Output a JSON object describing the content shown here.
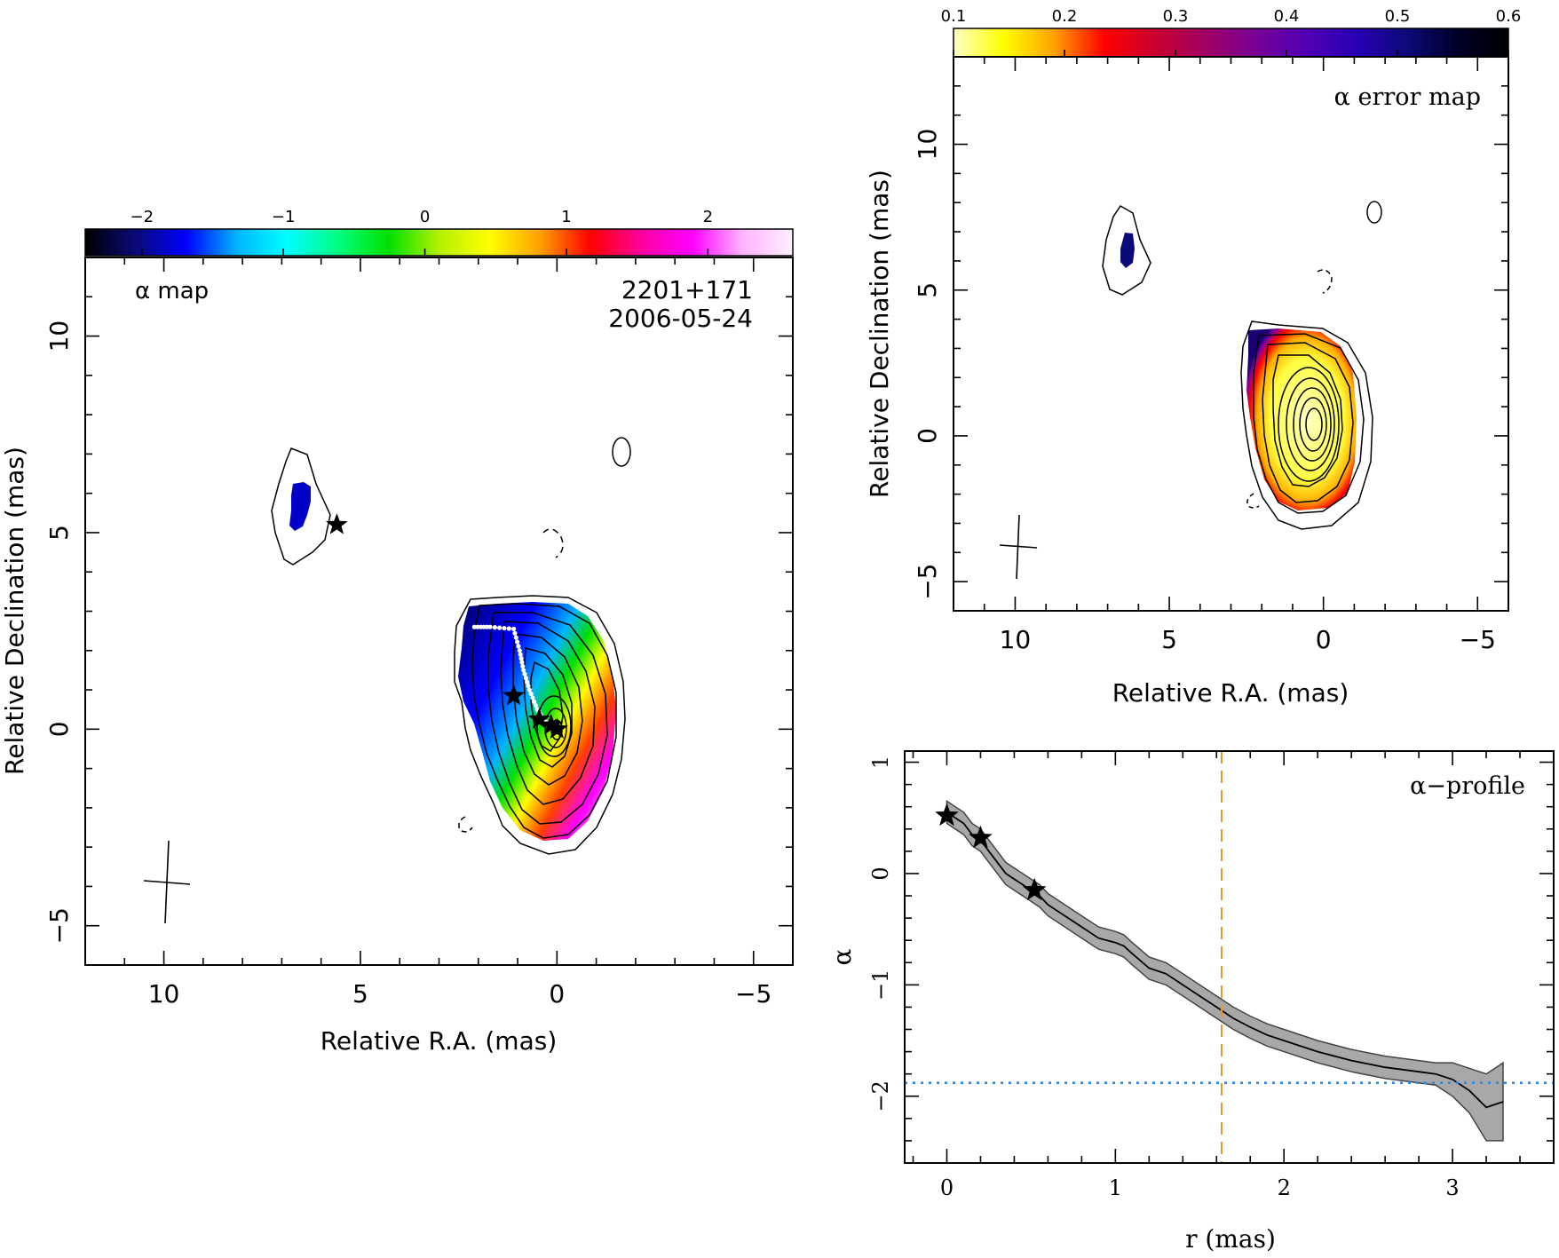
{
  "chart_data": [
    {
      "type": "heatmap",
      "title": "α map",
      "annotation": [
        "2201+171",
        "2006-05-24"
      ],
      "xlabel": "Relative R.A. (mas)",
      "ylabel": "Relative Declination (mas)",
      "xlim": [
        12,
        -6
      ],
      "ylim": [
        -6,
        12
      ],
      "x_ticks": [
        10,
        5,
        0,
        -5
      ],
      "y_ticks": [
        -5,
        0,
        5,
        10
      ],
      "colorbar": {
        "range": [
          -2.4,
          2.6
        ],
        "ticks": [
          -2,
          -1,
          0,
          1,
          2
        ],
        "tick_labels": [
          "−2",
          "−1",
          "0",
          "1",
          "2"
        ],
        "colors": [
          "#000000",
          "#0a0a78",
          "#0000ff",
          "#00b4ff",
          "#00ffff",
          "#00ff80",
          "#00e000",
          "#b4f000",
          "#ffff00",
          "#ffa000",
          "#ff0000",
          "#ff00a0",
          "#ff00ff",
          "#ffb4ff",
          "#fff0ff"
        ]
      },
      "stars": [
        [
          5.6,
          5.2
        ],
        [
          1.1,
          0.85
        ],
        [
          0.45,
          0.25
        ],
        [
          0.15,
          0.1
        ],
        [
          0.0,
          0.0
        ]
      ],
      "ridge_line": [
        [
          2.1,
          2.6
        ],
        [
          1.7,
          2.6
        ],
        [
          1.1,
          2.55
        ],
        [
          0.95,
          2.0
        ],
        [
          0.85,
          1.5
        ],
        [
          0.7,
          1.0
        ],
        [
          0.5,
          0.5
        ],
        [
          0.3,
          0.2
        ],
        [
          0.0,
          0.0
        ]
      ]
    },
    {
      "type": "heatmap",
      "title": "α error map",
      "xlabel": "Relative R.A. (mas)",
      "ylabel": "Relative Declination (mas)",
      "xlim": [
        12,
        -6
      ],
      "ylim": [
        -6,
        13
      ],
      "x_ticks": [
        10,
        5,
        0,
        -5
      ],
      "y_ticks": [
        -5,
        0,
        5,
        10
      ],
      "colorbar": {
        "range": [
          0.1,
          0.6
        ],
        "ticks": [
          0.1,
          0.2,
          0.3,
          0.4,
          0.5,
          0.6
        ],
        "tick_labels": [
          "0.1",
          "0.2",
          "0.3",
          "0.4",
          "0.5",
          "0.6"
        ],
        "colors": [
          "#ffffc8",
          "#ffff00",
          "#ffa000",
          "#ff0000",
          "#c80030",
          "#a00064",
          "#780096",
          "#5000b4",
          "#2800b4",
          "#0a0a78",
          "#000028",
          "#000000"
        ]
      }
    },
    {
      "type": "line",
      "title": "α−profile",
      "xlabel": "r (mas)",
      "ylabel": "α",
      "xlim": [
        -0.25,
        3.6
      ],
      "ylim": [
        -2.6,
        1.1
      ],
      "x_ticks": [
        0,
        1,
        2,
        3
      ],
      "y_ticks": [
        -2,
        -1,
        0,
        1
      ],
      "y_tick_labels": [
        "−2",
        "−1",
        "0",
        "1"
      ],
      "series": [
        {
          "x": [
            0.0,
            0.1,
            0.15,
            0.2,
            0.3,
            0.35,
            0.4,
            0.5,
            0.55,
            0.6,
            0.7,
            0.8,
            0.9,
            1.0,
            1.05,
            1.1,
            1.2,
            1.3,
            1.4,
            1.5,
            1.6,
            1.7,
            1.8,
            1.9,
            2.0,
            2.2,
            2.4,
            2.6,
            2.8,
            2.9,
            3.0,
            3.1,
            3.2,
            3.3
          ],
          "y": [
            0.55,
            0.45,
            0.35,
            0.3,
            0.1,
            0.0,
            -0.05,
            -0.15,
            -0.2,
            -0.28,
            -0.38,
            -0.48,
            -0.58,
            -0.62,
            -0.65,
            -0.72,
            -0.85,
            -0.9,
            -1.0,
            -1.1,
            -1.2,
            -1.3,
            -1.38,
            -1.45,
            -1.5,
            -1.6,
            -1.68,
            -1.74,
            -1.78,
            -1.8,
            -1.85,
            -1.95,
            -2.1,
            -2.05
          ],
          "err": [
            0.1,
            0.1,
            0.1,
            0.1,
            0.1,
            0.1,
            0.1,
            0.1,
            0.1,
            0.1,
            0.1,
            0.1,
            0.1,
            0.1,
            0.1,
            0.1,
            0.1,
            0.1,
            0.1,
            0.1,
            0.1,
            0.1,
            0.1,
            0.1,
            0.1,
            0.1,
            0.1,
            0.1,
            0.1,
            0.1,
            0.15,
            0.2,
            0.3,
            0.35
          ]
        }
      ],
      "stars": [
        [
          0.0,
          0.52
        ],
        [
          0.2,
          0.32
        ],
        [
          0.52,
          -0.15
        ]
      ],
      "vline_x": 1.63,
      "vline_color": "#e8962a",
      "hline_y": -1.88,
      "hline_color": "#2a8ae8"
    }
  ]
}
